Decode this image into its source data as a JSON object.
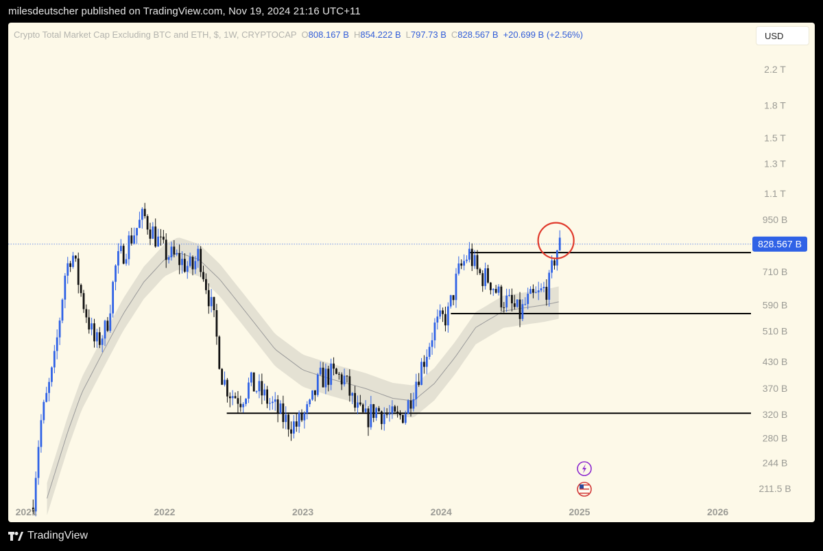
{
  "header": {
    "publish_line": "milesdeutscher published on TradingView.com, Nov 19, 2024 21:16 UTC+11"
  },
  "legend": {
    "symbol": "Crypto Total Market Cap Excluding BTC and ETH, $, 1W, CRYPTOCAP",
    "open_key": "O",
    "open": "808.167 B",
    "high_key": "H",
    "high": "854.222 B",
    "low_key": "L",
    "low": "797.73 B",
    "close_key": "C",
    "close": "828.567 B",
    "change": "+20.699 B (+2.56%)"
  },
  "toolbar": {
    "currency": "USD"
  },
  "footer": {
    "brand": "TradingView"
  },
  "colors": {
    "background": "#fdf9e8",
    "candle": "#2f62e6",
    "candle_down": "#111111",
    "price_badge": "#2f62e6",
    "circle": "#e0392b",
    "band": "#e4e1d3",
    "ma_line": "#9a9a9a",
    "axis_text": "#9b9b95"
  },
  "icons": [
    "lightning-event-icon",
    "us-flag-event-icon"
  ],
  "chart_data": {
    "type": "candlestick",
    "title": "Crypto Total Market Cap Excluding BTC and ETH, $, 1W, CRYPTOCAP",
    "scale": "log",
    "x_range": [
      2020.87,
      2026.24
    ],
    "y_range_billions": [
      195,
      2450
    ],
    "grid": false,
    "x_ticks": [
      {
        "x": 2021,
        "label": "2021"
      },
      {
        "x": 2022,
        "label": "2022"
      },
      {
        "x": 2023,
        "label": "2023"
      },
      {
        "x": 2024,
        "label": "2024"
      },
      {
        "x": 2025,
        "label": "2025"
      },
      {
        "x": 2026,
        "label": "2026"
      }
    ],
    "y_ticks": [
      {
        "value": 2200,
        "label": "2.2 T"
      },
      {
        "value": 1800,
        "label": "1.8 T"
      },
      {
        "value": 1500,
        "label": "1.5 T"
      },
      {
        "value": 1300,
        "label": "1.3 T"
      },
      {
        "value": 1100,
        "label": "1.1 T"
      },
      {
        "value": 950,
        "label": "950 B"
      },
      {
        "value": 710,
        "label": "710 B"
      },
      {
        "value": 590,
        "label": "590 B"
      },
      {
        "value": 510,
        "label": "510 B"
      },
      {
        "value": 430,
        "label": "430 B"
      },
      {
        "value": 370,
        "label": "370 B"
      },
      {
        "value": 320,
        "label": "320 B"
      },
      {
        "value": 280,
        "label": "280 B"
      },
      {
        "value": 244,
        "label": "244 B"
      },
      {
        "value": 211.5,
        "label": "211.5 B"
      }
    ],
    "last_price": {
      "value": 828.567,
      "label": "828.567 B"
    },
    "horizontal_levels": [
      {
        "value": 790,
        "from": 2024.2,
        "to": 2026.24
      },
      {
        "value": 562,
        "from": 2024.07,
        "to": 2026.24
      },
      {
        "value": 322,
        "from": 2022.45,
        "to": 2026.24
      }
    ],
    "circle_annotation": {
      "x": 2024.83,
      "value": 832
    },
    "moving_average": {
      "x": [
        2021.15,
        2021.3,
        2021.4,
        2021.55,
        2021.7,
        2021.85,
        2022.0,
        2022.1,
        2022.25,
        2022.4,
        2022.6,
        2022.8,
        2023.0,
        2023.2,
        2023.45,
        2023.65,
        2023.8,
        2023.95,
        2024.1,
        2024.25,
        2024.45,
        2024.6,
        2024.75,
        2024.85
      ],
      "y": [
        200,
        290,
        360,
        450,
        560,
        670,
        760,
        790,
        760,
        680,
        560,
        460,
        410,
        390,
        370,
        350,
        345,
        380,
        440,
        520,
        570,
        580,
        590,
        600
      ]
    },
    "band_width_pct": 9,
    "ohlc_anchors": {
      "x": [
        2021.05,
        2021.1,
        2021.2,
        2021.28,
        2021.33,
        2021.4,
        2021.5,
        2021.58,
        2021.65,
        2021.75,
        2021.85,
        2021.93,
        2022.0,
        2022.1,
        2022.2,
        2022.25,
        2022.35,
        2022.42,
        2022.48,
        2022.55,
        2022.62,
        2022.7,
        2022.8,
        2022.87,
        2022.95,
        2023.05,
        2023.12,
        2023.2,
        2023.3,
        2023.38,
        2023.45,
        2023.52,
        2023.6,
        2023.68,
        2023.75,
        2023.82,
        2023.88,
        2023.95,
        2024.05,
        2024.12,
        2024.2,
        2024.27,
        2024.35,
        2024.42,
        2024.5,
        2024.57,
        2024.62,
        2024.7,
        2024.78,
        2024.83,
        2024.86
      ],
      "close": [
        200,
        300,
        420,
        700,
        800,
        620,
        470,
        520,
        740,
        850,
        970,
        870,
        790,
        760,
        720,
        790,
        560,
        390,
        360,
        350,
        380,
        360,
        330,
        310,
        300,
        330,
        390,
        400,
        390,
        330,
        310,
        330,
        320,
        310,
        330,
        390,
        440,
        520,
        560,
        700,
        790,
        700,
        680,
        620,
        590,
        560,
        600,
        620,
        660,
        800,
        828.567
      ]
    }
  }
}
